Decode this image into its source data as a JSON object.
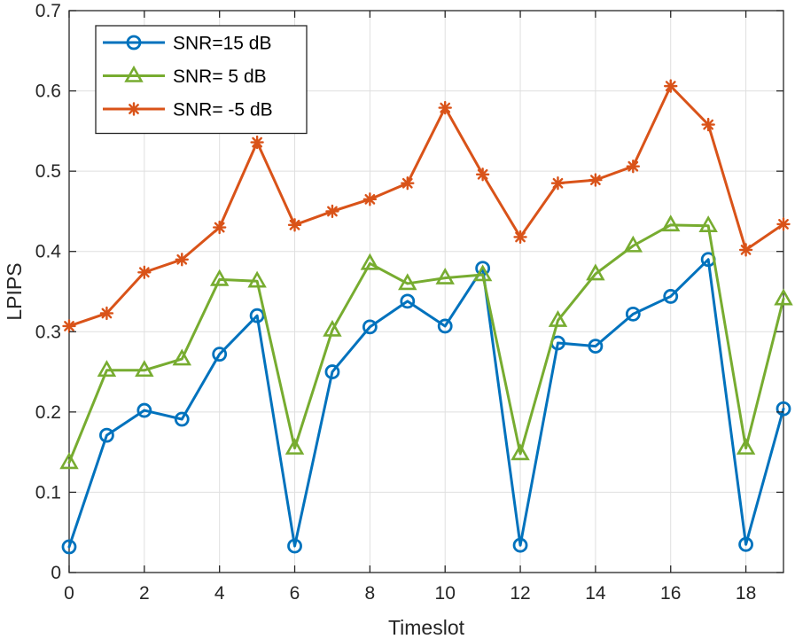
{
  "chart_data": {
    "type": "line",
    "title": "",
    "xlabel": "Timeslot",
    "ylabel": "LPIPS",
    "xlim": [
      0,
      19
    ],
    "ylim": [
      0,
      0.7
    ],
    "xticks": [
      0,
      2,
      4,
      6,
      8,
      10,
      12,
      14,
      16,
      18
    ],
    "yticks": [
      0,
      0.1,
      0.2,
      0.3,
      0.4,
      0.5,
      0.6,
      0.7
    ],
    "xtick_labels": [
      "0",
      "2",
      "4",
      "6",
      "8",
      "10",
      "12",
      "14",
      "16",
      "18"
    ],
    "ytick_labels": [
      "0",
      "0.1",
      "0.2",
      "0.3",
      "0.4",
      "0.5",
      "0.6",
      "0.7"
    ],
    "grid": true,
    "legend_position": "top-left",
    "x": [
      0,
      1,
      2,
      3,
      4,
      5,
      6,
      7,
      8,
      9,
      10,
      11,
      12,
      13,
      14,
      15,
      16,
      17,
      18,
      19
    ],
    "series": [
      {
        "name": "SNR=15 dB",
        "color": "#0072BD",
        "marker": "circle",
        "values": [
          0.032,
          0.171,
          0.202,
          0.191,
          0.272,
          0.32,
          0.033,
          0.25,
          0.306,
          0.338,
          0.307,
          0.379,
          0.034,
          0.286,
          0.282,
          0.322,
          0.344,
          0.39,
          0.035,
          0.204
        ]
      },
      {
        "name": "SNR= 5 dB",
        "color": "#77AC30",
        "marker": "triangle",
        "values": [
          0.137,
          0.252,
          0.252,
          0.266,
          0.365,
          0.363,
          0.155,
          0.302,
          0.385,
          0.36,
          0.367,
          0.371,
          0.148,
          0.314,
          0.372,
          0.407,
          0.433,
          0.432,
          0.155,
          0.341
        ]
      },
      {
        "name": "SNR= -5 dB",
        "color": "#D95319",
        "marker": "asterisk",
        "values": [
          0.307,
          0.323,
          0.374,
          0.39,
          0.43,
          0.536,
          0.433,
          0.45,
          0.465,
          0.485,
          0.579,
          0.496,
          0.418,
          0.485,
          0.489,
          0.506,
          0.606,
          0.558,
          0.402,
          0.434
        ]
      }
    ]
  }
}
